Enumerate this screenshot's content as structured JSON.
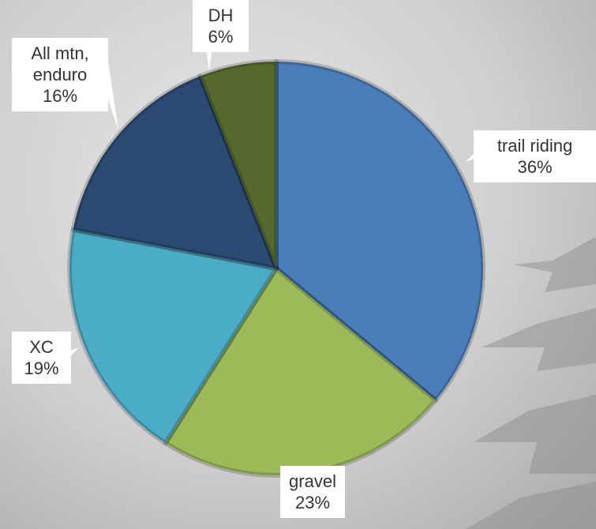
{
  "chart_data": {
    "type": "pie",
    "categories": [
      "trail riding",
      "gravel",
      "XC",
      "All mtn, enduro",
      "DH"
    ],
    "values": [
      36,
      23,
      19,
      16,
      6
    ],
    "value_labels": [
      "36%",
      "23%",
      "19%",
      "16%",
      "6%"
    ],
    "colors": [
      "#4a7ebb",
      "#9bbb59",
      "#4bacc6",
      "#2b4a72",
      "#56692c"
    ]
  }
}
